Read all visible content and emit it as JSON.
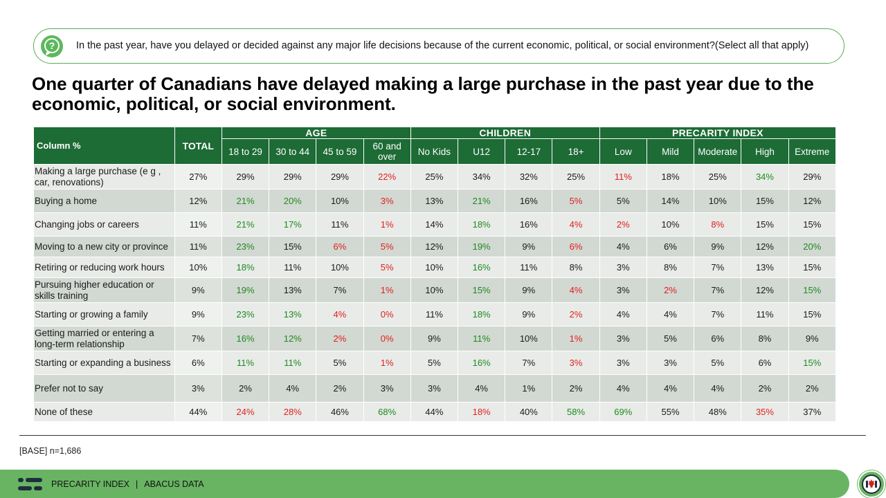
{
  "question": {
    "icon": "question-bubble-icon",
    "text": "In the past year, have you delayed or decided against any major life decisions because of the current economic, political, or social environment?(Select all that apply)"
  },
  "headline": "One quarter of Canadians have delayed making a large purchase in the past year due to the economic, political, or social environment.",
  "table": {
    "column_header": "Column %",
    "total_header": "TOTAL",
    "groups": [
      {
        "name": "AGE",
        "columns": [
          "18 to 29",
          "30 to 44",
          "45 to 59",
          "60 and over"
        ]
      },
      {
        "name": "CHILDREN",
        "columns": [
          "No Kids",
          "U12",
          "12-17",
          "18+"
        ]
      },
      {
        "name": "PRECARITY INDEX",
        "columns": [
          "Low",
          "Mild",
          "Moderate",
          "High",
          "Extreme"
        ]
      }
    ],
    "colors": {
      "header_green": "#1d6b35",
      "significant_high": "#1f8a1f",
      "significant_low": "#e02020"
    },
    "rows": [
      {
        "label": "Making a large purchase (e g , car, renovations)",
        "total": "27%",
        "values": [
          "29%",
          "29%",
          "29%",
          "22%",
          "25%",
          "34%",
          "32%",
          "25%",
          "11%",
          "18%",
          "25%",
          "34%",
          "29%"
        ],
        "sig": [
          "",
          "",
          "",
          "r",
          "",
          "",
          "",
          "",
          "r",
          "",
          "",
          "g",
          ""
        ]
      },
      {
        "label": "Buying a home",
        "total": "12%",
        "values": [
          "21%",
          "20%",
          "10%",
          "3%",
          "13%",
          "21%",
          "16%",
          "5%",
          "5%",
          "14%",
          "10%",
          "15%",
          "12%"
        ],
        "sig": [
          "g",
          "g",
          "",
          "r",
          "",
          "g",
          "",
          "r",
          "",
          "",
          "",
          "",
          ""
        ]
      },
      {
        "label": "Changing jobs or careers",
        "total": "11%",
        "values": [
          "21%",
          "17%",
          "11%",
          "1%",
          "14%",
          "18%",
          "16%",
          "4%",
          "2%",
          "10%",
          "8%",
          "15%",
          "15%"
        ],
        "sig": [
          "g",
          "g",
          "",
          "r",
          "",
          "g",
          "",
          "r",
          "r",
          "",
          "r",
          "",
          ""
        ]
      },
      {
        "label": "Moving to a new city or province",
        "total": "11%",
        "values": [
          "23%",
          "15%",
          "6%",
          "5%",
          "12%",
          "19%",
          "9%",
          "6%",
          "4%",
          "6%",
          "9%",
          "12%",
          "20%"
        ],
        "sig": [
          "g",
          "",
          "r",
          "r",
          "",
          "g",
          "",
          "r",
          "",
          "",
          "",
          "",
          "g"
        ]
      },
      {
        "label": "Retiring or reducing work hours",
        "total": "10%",
        "values": [
          "18%",
          "11%",
          "10%",
          "5%",
          "10%",
          "16%",
          "11%",
          "8%",
          "3%",
          "8%",
          "7%",
          "13%",
          "15%"
        ],
        "sig": [
          "g",
          "",
          "",
          "r",
          "",
          "g",
          "",
          "",
          "",
          "",
          "",
          "",
          ""
        ]
      },
      {
        "label": "Pursuing higher education or skills training",
        "total": "9%",
        "values": [
          "19%",
          "13%",
          "7%",
          "1%",
          "10%",
          "15%",
          "9%",
          "4%",
          "3%",
          "2%",
          "7%",
          "12%",
          "15%"
        ],
        "sig": [
          "g",
          "",
          "",
          "r",
          "",
          "g",
          "",
          "r",
          "",
          "r",
          "",
          "",
          "g"
        ]
      },
      {
        "label": "Starting or growing a family",
        "total": "9%",
        "values": [
          "23%",
          "13%",
          "4%",
          "0%",
          "11%",
          "18%",
          "9%",
          "2%",
          "4%",
          "4%",
          "7%",
          "11%",
          "15%"
        ],
        "sig": [
          "g",
          "g",
          "r",
          "r",
          "",
          "g",
          "",
          "r",
          "",
          "",
          "",
          "",
          ""
        ]
      },
      {
        "label": "Getting married or entering a long-term relationship",
        "total": "7%",
        "values": [
          "16%",
          "12%",
          "2%",
          "0%",
          "9%",
          "11%",
          "10%",
          "1%",
          "3%",
          "5%",
          "6%",
          "8%",
          "9%"
        ],
        "sig": [
          "g",
          "g",
          "r",
          "r",
          "",
          "g",
          "",
          "r",
          "",
          "",
          "",
          "",
          ""
        ]
      },
      {
        "label": "Starting or expanding a business",
        "total": "6%",
        "values": [
          "11%",
          "11%",
          "5%",
          "1%",
          "5%",
          "16%",
          "7%",
          "3%",
          "3%",
          "3%",
          "5%",
          "6%",
          "15%"
        ],
        "sig": [
          "g",
          "g",
          "",
          "r",
          "",
          "g",
          "",
          "r",
          "",
          "",
          "",
          "",
          "g"
        ]
      },
      {
        "label": "Prefer not to say",
        "total": "3%",
        "values": [
          "2%",
          "4%",
          "2%",
          "3%",
          "3%",
          "4%",
          "1%",
          "2%",
          "4%",
          "4%",
          "4%",
          "2%",
          "2%"
        ],
        "sig": [
          "",
          "",
          "",
          "",
          "",
          "",
          "",
          "",
          "",
          "",
          "",
          "",
          ""
        ]
      },
      {
        "label": "None of these",
        "total": "44%",
        "values": [
          "24%",
          "28%",
          "46%",
          "68%",
          "44%",
          "18%",
          "40%",
          "58%",
          "69%",
          "55%",
          "48%",
          "35%",
          "37%"
        ],
        "sig": [
          "r",
          "r",
          "",
          "g",
          "",
          "r",
          "",
          "g",
          "g",
          "",
          "",
          "r",
          ""
        ]
      }
    ]
  },
  "base_note": "[BASE] n=1,686",
  "footer": {
    "logo": "abacus-logo-icon",
    "left_text": "PRECARITY INDEX",
    "separator": "|",
    "right_text": "ABACUS DATA",
    "badge": "maple-leaf-icon"
  }
}
